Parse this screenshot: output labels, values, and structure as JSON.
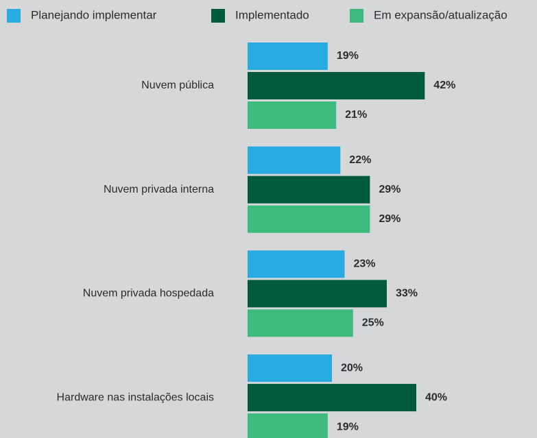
{
  "chart_data": {
    "type": "barh",
    "categories": [
      "Nuvem pública",
      "Nuvem privada interna",
      "Nuvem privada hospedada",
      "Hardware nas instalações locais"
    ],
    "series": [
      {
        "name": "Planejando implementar",
        "color": "#29abe2",
        "values": [
          19,
          22,
          23,
          20
        ],
        "value_labels": [
          "19%",
          "22%",
          "23%",
          "20%"
        ]
      },
      {
        "name": "Implementado",
        "color": "#005a3c",
        "values": [
          42,
          29,
          33,
          40
        ],
        "value_labels": [
          "42%",
          "29%",
          "33%",
          "40%"
        ]
      },
      {
        "name": "Em expansão/atualização",
        "color": "#3dbb7f",
        "values": [
          21,
          29,
          25,
          19
        ],
        "value_labels": [
          "21%",
          "29%",
          "25%",
          "19%"
        ]
      }
    ],
    "xlim": [
      0,
      60
    ],
    "legend": "top"
  }
}
